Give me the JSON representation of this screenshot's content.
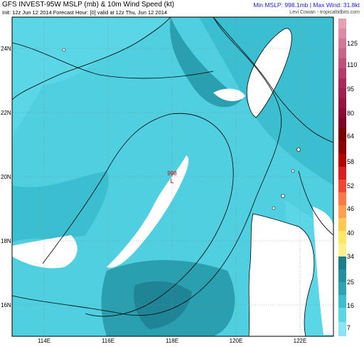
{
  "header": {
    "title": "GFS INVEST-95W MSLP (mb) & 10m Wind Speed (kt)",
    "init_line": "Init: 12z Jun 12 2014 Forecast Hour: [0] valid at 12z Thu, Jun 12 2014",
    "stats": "Min MSLP: 998.1mb | Max Wind: 31.8kt",
    "credit": "Levi Cowan - tropicaltidbits.com"
  },
  "map": {
    "center_label": "998",
    "center_symbol": "L",
    "lat_labels": [
      "24N",
      "22N",
      "20N",
      "18N",
      "16N"
    ],
    "lon_labels": [
      "114E",
      "116E",
      "118E",
      "120E",
      "122E"
    ],
    "colors": {
      "sea_light": "#5ad6e6",
      "sea_mid": "#3bbfd0",
      "sea_dark": "#2a9fb0",
      "sea_darker": "#1f8596",
      "calm": "#ffffff",
      "coast": "#000000",
      "center_marker": "#cc0000"
    }
  },
  "colorbar": {
    "labels": [
      "125",
      "110",
      "95",
      "80",
      "64",
      "58",
      "52",
      "46",
      "40",
      "34",
      "25",
      "16",
      "7"
    ]
  }
}
